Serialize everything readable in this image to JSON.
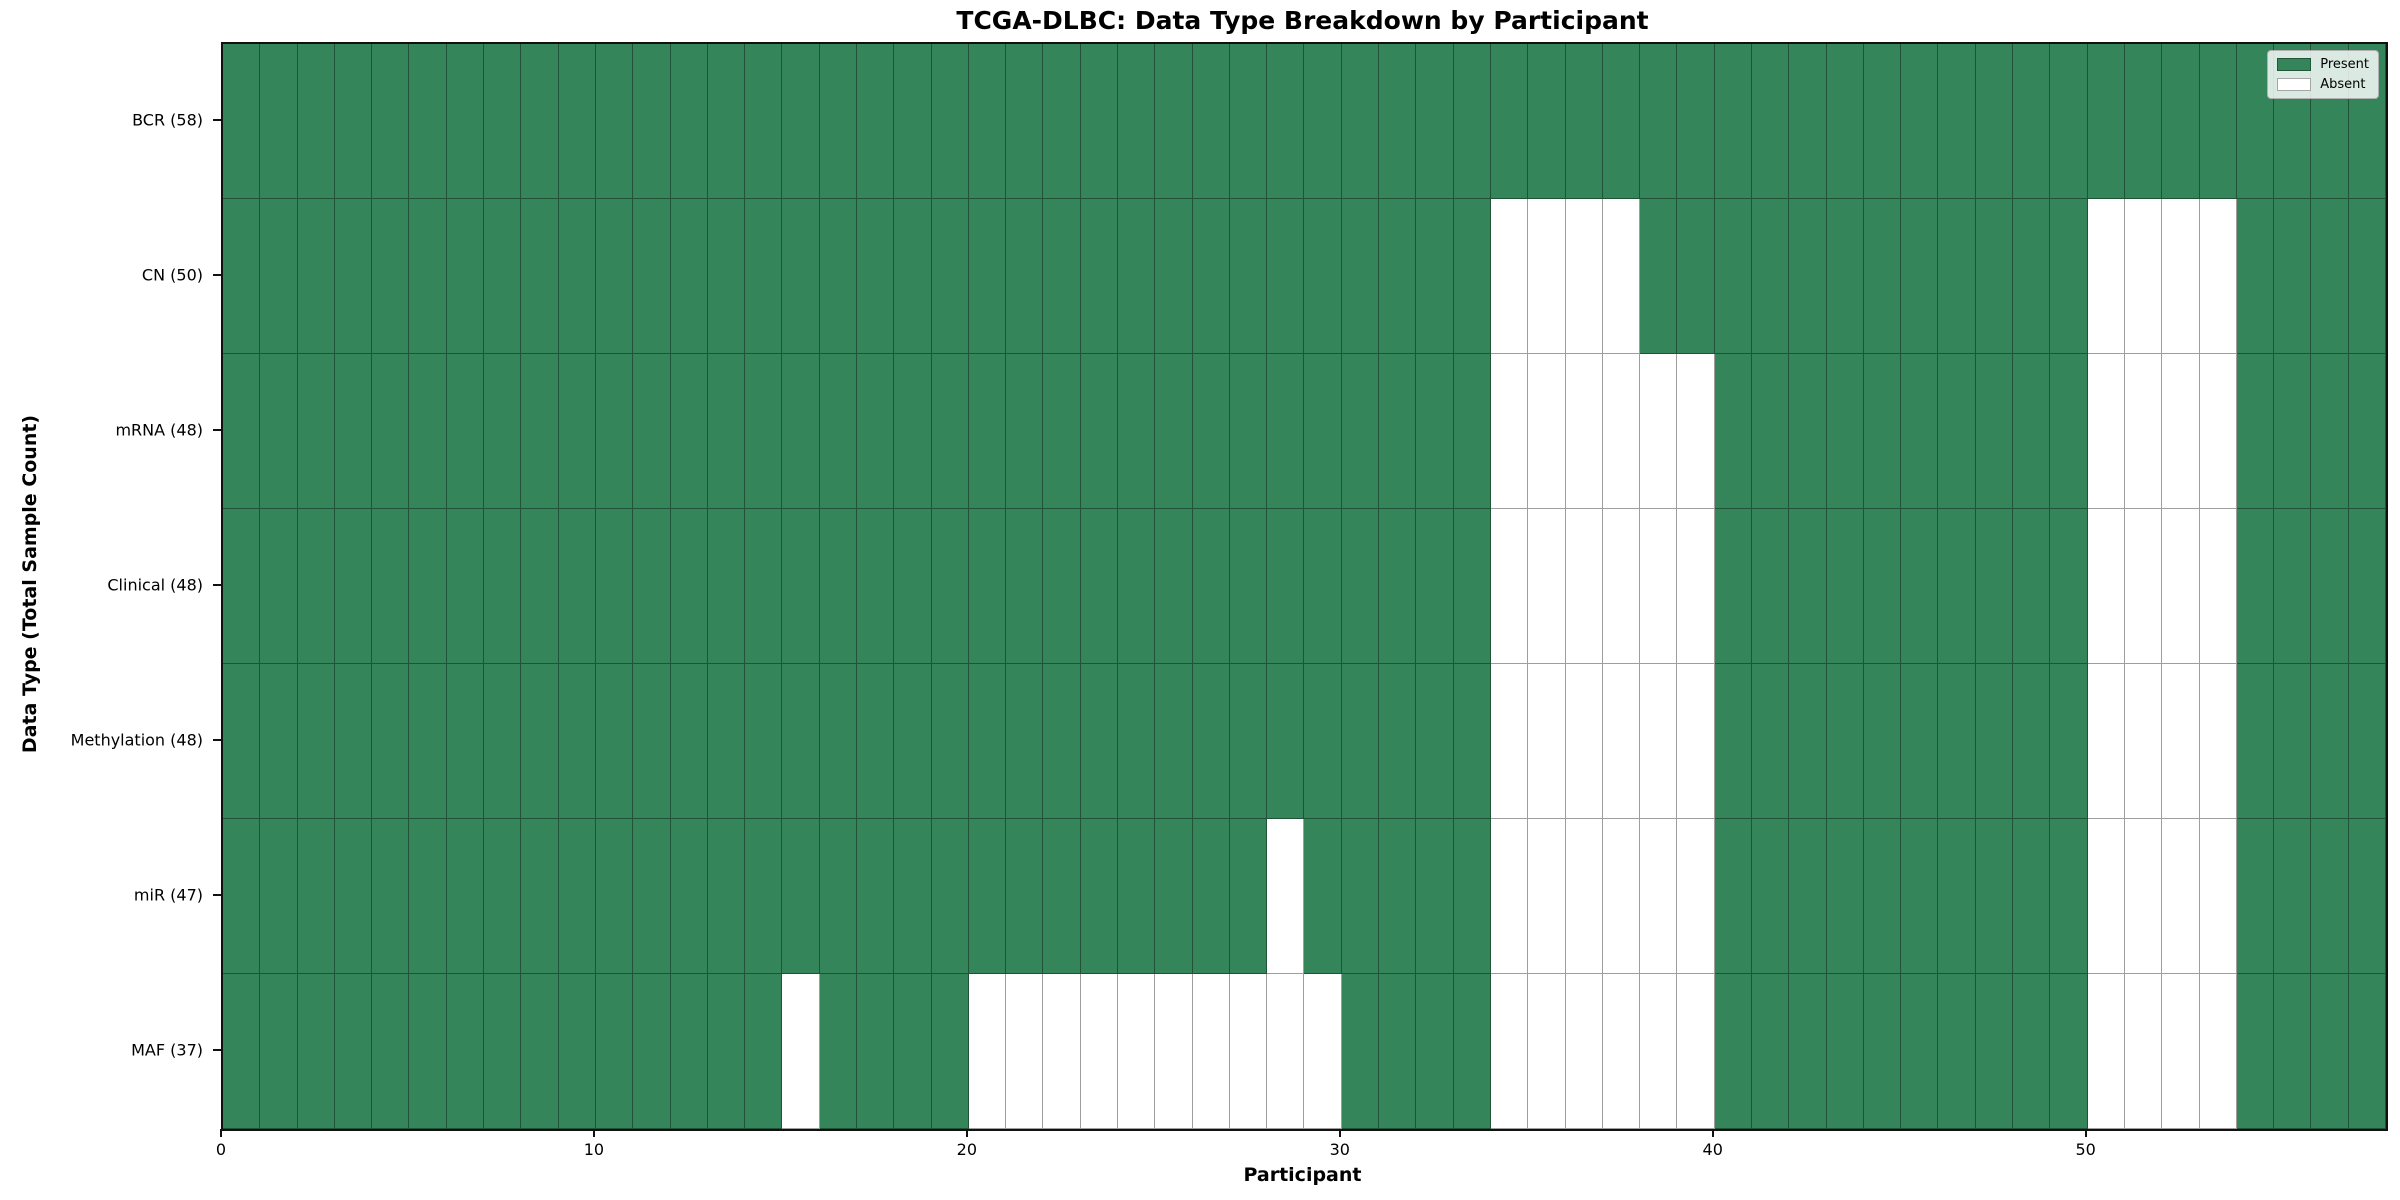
{
  "chart_data": {
    "type": "heatmap",
    "title": "TCGA-DLBC: Data Type Breakdown by Participant",
    "xlabel": "Participant",
    "ylabel": "Data Type (Total Sample Count)",
    "n_participants": 58,
    "x_axis": {
      "min": 0,
      "max": 58,
      "tick_values": [
        0,
        10,
        20,
        30,
        40,
        50
      ],
      "tick_labels": [
        "0",
        "10",
        "20",
        "30",
        "40",
        "50"
      ]
    },
    "colors": {
      "present": "#348559",
      "absent": "#ffffff",
      "gridline": "rgba(0,0,0,0.38)",
      "spine": "#111111"
    },
    "legend": {
      "position": "upper-right",
      "entries": [
        {
          "label": "Present",
          "state": "present",
          "color": "#348559"
        },
        {
          "label": "Absent",
          "state": "absent",
          "color": "#ffffff"
        }
      ]
    },
    "rows": [
      {
        "label": "BCR (58)",
        "data_type": "BCR",
        "total_samples": 58,
        "absent_participants": []
      },
      {
        "label": "CN (50)",
        "data_type": "CN",
        "total_samples": 50,
        "absent_participants": [
          34,
          35,
          36,
          37,
          50,
          51,
          52,
          53
        ]
      },
      {
        "label": "mRNA (48)",
        "data_type": "mRNA",
        "total_samples": 48,
        "absent_participants": [
          34,
          35,
          36,
          37,
          38,
          39,
          50,
          51,
          52,
          53
        ]
      },
      {
        "label": "Clinical (48)",
        "data_type": "Clinical",
        "total_samples": 48,
        "absent_participants": [
          34,
          35,
          36,
          37,
          38,
          39,
          50,
          51,
          52,
          53
        ]
      },
      {
        "label": "Methylation (48)",
        "data_type": "Methylation",
        "total_samples": 48,
        "absent_participants": [
          34,
          35,
          36,
          37,
          38,
          39,
          50,
          51,
          52,
          53
        ]
      },
      {
        "label": "miR (47)",
        "data_type": "miR",
        "total_samples": 47,
        "absent_participants": [
          28,
          34,
          35,
          36,
          37,
          38,
          39,
          50,
          51,
          52,
          53
        ]
      },
      {
        "label": "MAF (37)",
        "data_type": "MAF",
        "total_samples": 37,
        "absent_participants": [
          15,
          20,
          21,
          22,
          23,
          24,
          25,
          26,
          27,
          28,
          29,
          34,
          35,
          36,
          37,
          38,
          39,
          50,
          51,
          52,
          53
        ]
      }
    ]
  }
}
